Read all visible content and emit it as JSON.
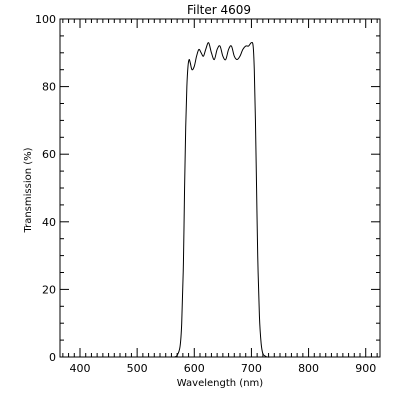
{
  "chart_data": {
    "type": "line",
    "title": "Filter 4609",
    "xlabel": "Wavelength (nm)",
    "ylabel": "Transmission (%)",
    "xlim": [
      365,
      925
    ],
    "ylim": [
      0,
      100
    ],
    "x_ticks": [
      400,
      500,
      600,
      700,
      800,
      900
    ],
    "y_ticks": [
      0,
      20,
      40,
      60,
      80,
      100
    ],
    "x_tick_labels": [
      "400",
      "500",
      "600",
      "700",
      "800",
      "900"
    ],
    "y_tick_labels": [
      "0",
      "20",
      "40",
      "60",
      "80",
      "100"
    ],
    "x_minor_step": 10,
    "y_minor_step": 5,
    "grid": false,
    "series": [
      {
        "color": "#000000",
        "x": [
          565,
          570,
          575,
          578,
          581,
          583,
          585,
          587,
          589,
          591,
          593,
          596,
          600,
          604,
          608,
          612,
          616,
          620,
          625,
          630,
          635,
          640,
          645,
          650,
          655,
          660,
          665,
          670,
          675,
          680,
          685,
          690,
          695,
          700,
          703,
          705,
          707,
          709,
          711,
          714,
          717,
          720,
          724,
          728,
          733
        ],
        "y": [
          0,
          0.5,
          3,
          10,
          28,
          50,
          68,
          80,
          86,
          88,
          87,
          85,
          86,
          89,
          91,
          90,
          89,
          91,
          93,
          90,
          88,
          91,
          92,
          89,
          88,
          91,
          92,
          89,
          88,
          89,
          91,
          92,
          92,
          93,
          92,
          85,
          70,
          50,
          30,
          12,
          4,
          1,
          0.3,
          0,
          0
        ]
      }
    ]
  }
}
